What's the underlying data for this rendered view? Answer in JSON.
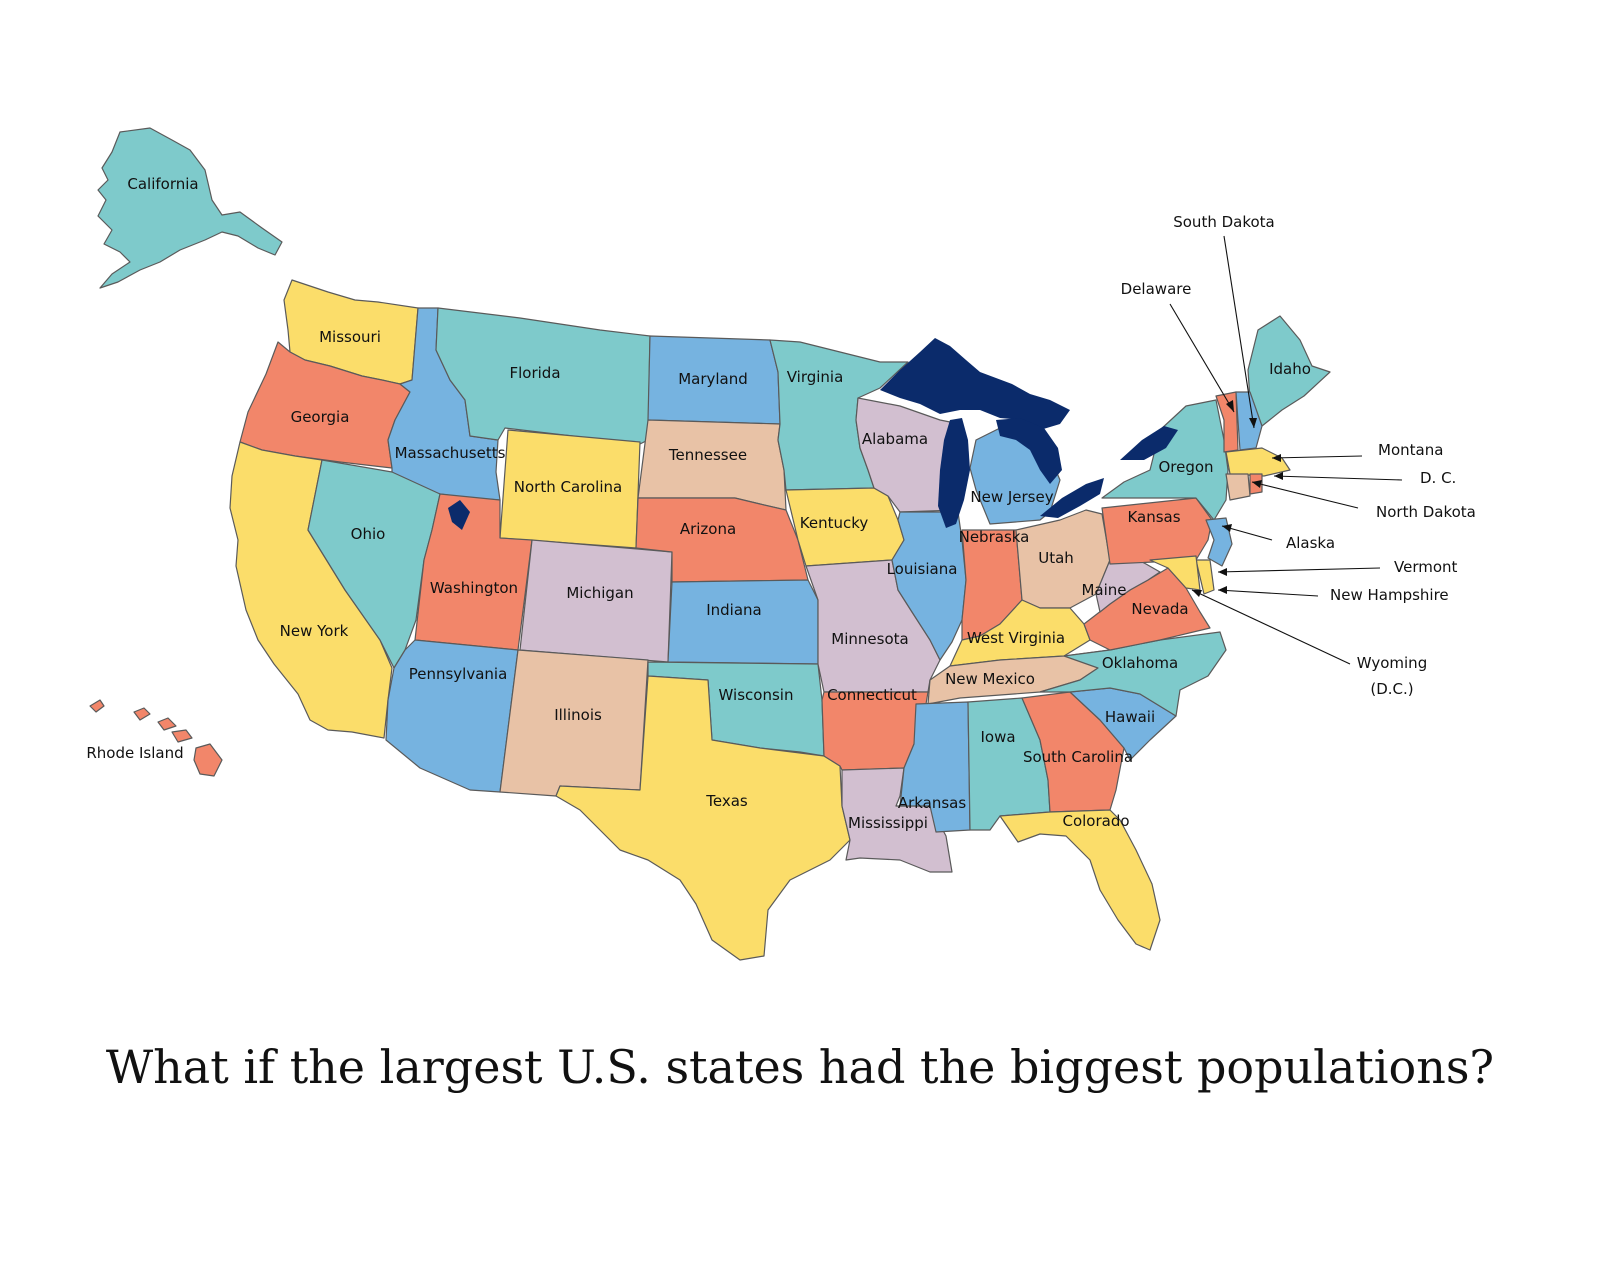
{
  "title": "What if the largest U.S. states had the biggest populations?",
  "legend_colors": {
    "orange": "#F2866A",
    "yellow": "#FBDD6A",
    "teal": "#7ECACB",
    "blue": "#76B3E0",
    "lilac": "#D2BFD0",
    "tan": "#E8C2A6",
    "lakes": "#0B2B6B"
  },
  "regions": [
    {
      "id": "alaska-shape",
      "label": "California",
      "color": "#7ECACB"
    },
    {
      "id": "washington-shape",
      "label": "Missouri",
      "color": "#FBDD6A"
    },
    {
      "id": "oregon-shape",
      "label": "Georgia",
      "color": "#F2866A"
    },
    {
      "id": "california-shape",
      "label": "New York",
      "color": "#FBDD6A"
    },
    {
      "id": "idaho-shape",
      "label": "Massachusetts",
      "color": "#76B3E0"
    },
    {
      "id": "nevada-shape",
      "label": "Ohio",
      "color": "#7ECACB"
    },
    {
      "id": "montana-shape",
      "label": "Florida",
      "color": "#7ECACB"
    },
    {
      "id": "wyoming-shape",
      "label": "North Carolina",
      "color": "#FBDD6A"
    },
    {
      "id": "utah-shape",
      "label": "Washington",
      "color": "#F2866A"
    },
    {
      "id": "colorado-shape",
      "label": "Michigan",
      "color": "#D2BFD0"
    },
    {
      "id": "arizona-shape",
      "label": "Pennsylvania",
      "color": "#76B3E0"
    },
    {
      "id": "newmexico-shape",
      "label": "Illinois",
      "color": "#E8C2A6"
    },
    {
      "id": "northdakota-shape",
      "label": "Maryland",
      "color": "#76B3E0"
    },
    {
      "id": "southdakota-shape",
      "label": "Tennessee",
      "color": "#E8C2A6"
    },
    {
      "id": "nebraska-shape",
      "label": "Arizona",
      "color": "#F2866A"
    },
    {
      "id": "kansas-shape",
      "label": "Indiana",
      "color": "#76B3E0"
    },
    {
      "id": "oklahoma-shape",
      "label": "Wisconsin",
      "color": "#7ECACB"
    },
    {
      "id": "texas-shape",
      "label": "Texas",
      "color": "#FBDD6A"
    },
    {
      "id": "minnesota-shape",
      "label": "Virginia",
      "color": "#7ECACB"
    },
    {
      "id": "iowa-shape",
      "label": "Kentucky",
      "color": "#FBDD6A"
    },
    {
      "id": "missouri-shape",
      "label": "Minnesota",
      "color": "#D2BFD0"
    },
    {
      "id": "arkansas-shape",
      "label": "Connecticut",
      "color": "#F2866A"
    },
    {
      "id": "louisiana-shape",
      "label": "Mississippi",
      "color": "#D2BFD0"
    },
    {
      "id": "wisconsin-shape",
      "label": "Alabama",
      "color": "#D2BFD0"
    },
    {
      "id": "illinois-shape",
      "label": "Louisiana",
      "color": "#76B3E0"
    },
    {
      "id": "michigan-shape",
      "label": "New Jersey",
      "color": "#76B3E0"
    },
    {
      "id": "indiana-shape",
      "label": "Nebraska",
      "color": "#F2866A"
    },
    {
      "id": "ohio-shape",
      "label": "Utah",
      "color": "#E8C2A6"
    },
    {
      "id": "kentucky-shape",
      "label": "West Virginia",
      "color": "#FBDD6A"
    },
    {
      "id": "tennessee-shape",
      "label": "New Mexico",
      "color": "#E8C2A6"
    },
    {
      "id": "mississippi-shape",
      "label": "Arkansas",
      "color": "#76B3E0"
    },
    {
      "id": "alabama-shape",
      "label": "Iowa",
      "color": "#7ECACB"
    },
    {
      "id": "georgia-shape",
      "label": "South Carolina",
      "color": "#F2866A"
    },
    {
      "id": "florida-shape",
      "label": "Colorado",
      "color": "#FBDD6A"
    },
    {
      "id": "southcarolina-shape",
      "label": "Hawaii",
      "color": "#76B3E0"
    },
    {
      "id": "northcarolina-shape",
      "label": "Oklahoma",
      "color": "#7ECACB"
    },
    {
      "id": "virginia-shape",
      "label": "Nevada",
      "color": "#F2866A"
    },
    {
      "id": "westvirginia-shape",
      "label": "Maine",
      "color": "#D2BFD0"
    },
    {
      "id": "pennsylvania-shape",
      "label": "Kansas",
      "color": "#F2866A"
    },
    {
      "id": "newyork-shape",
      "label": "Oregon",
      "color": "#7ECACB"
    },
    {
      "id": "maine-shape",
      "label": "Idaho",
      "color": "#7ECACB"
    },
    {
      "id": "hawaii-shape",
      "label": "Rhode Island",
      "color": "#F2866A"
    }
  ],
  "small_state_callouts": [
    "South Dakota",
    "Delaware",
    "Montana",
    "D. C.",
    "North Dakota",
    "Alaska",
    "Vermont",
    "New Hampshire",
    "Wyoming",
    "(D.C.)"
  ]
}
